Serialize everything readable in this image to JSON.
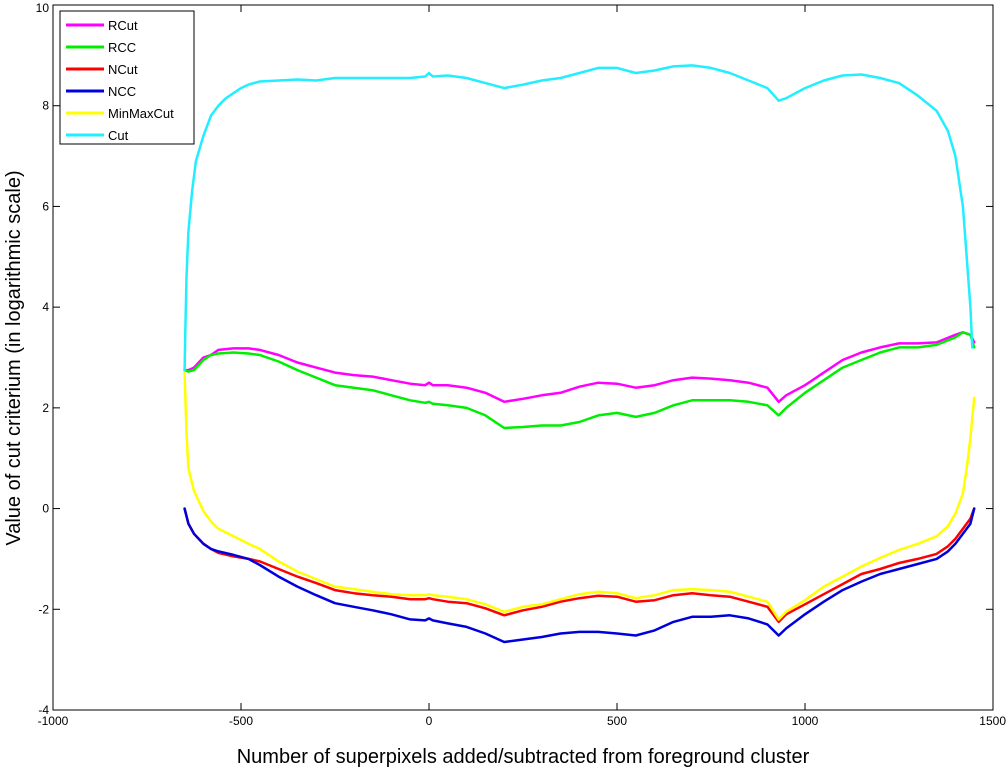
{
  "chart_data": {
    "type": "line",
    "title": "",
    "xlabel": "Number of superpixels added/subtracted from foreground cluster",
    "ylabel": "Value of cut criterium (in logarithmic scale)",
    "xlim": [
      -1000,
      1500
    ],
    "ylim": [
      -4,
      10
    ],
    "xticks": [
      -1000,
      -500,
      0,
      500,
      1000,
      1500
    ],
    "xtick_labels": [
      "-1000",
      "-500",
      "0",
      "500",
      "1000",
      "1500"
    ],
    "yticks": [
      -4,
      -2,
      0,
      2,
      4,
      6,
      8,
      10
    ],
    "ytick_labels": [
      "-4",
      "-2",
      "0",
      "2",
      "4",
      "6",
      "8",
      "10"
    ],
    "grid": false,
    "legend_position": "top-left",
    "series": [
      {
        "name": "RCut",
        "color": "#ff00ff",
        "x": [
          -650,
          -640,
          -625,
          -600,
          -580,
          -560,
          -520,
          -480,
          -450,
          -400,
          -350,
          -300,
          -250,
          -200,
          -150,
          -100,
          -50,
          -10,
          0,
          10,
          50,
          100,
          150,
          200,
          250,
          300,
          350,
          400,
          450,
          500,
          550,
          600,
          650,
          700,
          750,
          800,
          850,
          900,
          930,
          950,
          1000,
          1050,
          1100,
          1150,
          1200,
          1250,
          1300,
          1350,
          1400,
          1420,
          1440,
          1450
        ],
        "y": [
          2.75,
          2.75,
          2.8,
          3.0,
          3.05,
          3.15,
          3.18,
          3.18,
          3.15,
          3.05,
          2.9,
          2.8,
          2.7,
          2.65,
          2.62,
          2.55,
          2.48,
          2.45,
          2.5,
          2.45,
          2.45,
          2.4,
          2.3,
          2.12,
          2.18,
          2.25,
          2.3,
          2.42,
          2.5,
          2.48,
          2.4,
          2.45,
          2.55,
          2.6,
          2.58,
          2.55,
          2.5,
          2.4,
          2.12,
          2.25,
          2.45,
          2.7,
          2.95,
          3.1,
          3.2,
          3.28,
          3.28,
          3.3,
          3.45,
          3.5,
          3.45,
          3.3
        ]
      },
      {
        "name": "RCC",
        "color": "#00ee00",
        "x": [
          -650,
          -640,
          -625,
          -600,
          -580,
          -560,
          -520,
          -480,
          -450,
          -400,
          -350,
          -300,
          -250,
          -200,
          -150,
          -100,
          -50,
          -10,
          0,
          10,
          50,
          100,
          150,
          200,
          250,
          300,
          350,
          400,
          450,
          500,
          550,
          600,
          650,
          700,
          750,
          800,
          850,
          900,
          930,
          950,
          1000,
          1050,
          1100,
          1150,
          1200,
          1250,
          1300,
          1350,
          1400,
          1420,
          1440,
          1450
        ],
        "y": [
          2.75,
          2.72,
          2.75,
          2.95,
          3.05,
          3.08,
          3.1,
          3.08,
          3.05,
          2.92,
          2.75,
          2.6,
          2.45,
          2.4,
          2.35,
          2.25,
          2.15,
          2.1,
          2.12,
          2.08,
          2.05,
          2.0,
          1.85,
          1.6,
          1.62,
          1.65,
          1.65,
          1.72,
          1.85,
          1.9,
          1.82,
          1.9,
          2.05,
          2.15,
          2.15,
          2.15,
          2.12,
          2.05,
          1.85,
          2.0,
          2.3,
          2.55,
          2.8,
          2.95,
          3.1,
          3.2,
          3.2,
          3.25,
          3.4,
          3.5,
          3.45,
          3.2
        ]
      },
      {
        "name": "NCut",
        "color": "#ff0000",
        "x": [
          -650,
          -640,
          -625,
          -600,
          -580,
          -560,
          -520,
          -480,
          -450,
          -400,
          -350,
          -300,
          -250,
          -200,
          -150,
          -100,
          -50,
          -10,
          0,
          10,
          50,
          100,
          150,
          200,
          250,
          300,
          350,
          400,
          450,
          500,
          550,
          600,
          650,
          700,
          750,
          800,
          850,
          900,
          930,
          950,
          1000,
          1050,
          1100,
          1150,
          1200,
          1250,
          1300,
          1350,
          1380,
          1400,
          1420,
          1440,
          1450
        ],
        "y": [
          0.0,
          -0.3,
          -0.5,
          -0.7,
          -0.8,
          -0.88,
          -0.95,
          -1.0,
          -1.05,
          -1.2,
          -1.35,
          -1.48,
          -1.62,
          -1.68,
          -1.72,
          -1.75,
          -1.8,
          -1.8,
          -1.78,
          -1.8,
          -1.85,
          -1.88,
          -1.98,
          -2.12,
          -2.02,
          -1.95,
          -1.85,
          -1.78,
          -1.73,
          -1.75,
          -1.85,
          -1.82,
          -1.72,
          -1.68,
          -1.72,
          -1.75,
          -1.85,
          -1.95,
          -2.25,
          -2.1,
          -1.9,
          -1.7,
          -1.5,
          -1.3,
          -1.2,
          -1.08,
          -1.0,
          -0.9,
          -0.75,
          -0.6,
          -0.4,
          -0.2,
          0.0
        ]
      },
      {
        "name": "NCC",
        "color": "#0000dd",
        "x": [
          -650,
          -640,
          -625,
          -600,
          -580,
          -560,
          -520,
          -480,
          -450,
          -400,
          -350,
          -300,
          -250,
          -200,
          -150,
          -100,
          -50,
          -10,
          0,
          10,
          50,
          100,
          150,
          200,
          250,
          300,
          350,
          400,
          450,
          500,
          550,
          600,
          650,
          700,
          750,
          800,
          850,
          900,
          930,
          950,
          1000,
          1050,
          1100,
          1150,
          1200,
          1250,
          1300,
          1350,
          1380,
          1400,
          1420,
          1440,
          1450
        ],
        "y": [
          0.0,
          -0.3,
          -0.5,
          -0.7,
          -0.8,
          -0.85,
          -0.92,
          -1.0,
          -1.12,
          -1.35,
          -1.55,
          -1.72,
          -1.88,
          -1.95,
          -2.02,
          -2.1,
          -2.2,
          -2.22,
          -2.18,
          -2.22,
          -2.28,
          -2.35,
          -2.48,
          -2.65,
          -2.6,
          -2.55,
          -2.48,
          -2.45,
          -2.45,
          -2.48,
          -2.52,
          -2.42,
          -2.25,
          -2.15,
          -2.15,
          -2.12,
          -2.18,
          -2.3,
          -2.52,
          -2.38,
          -2.1,
          -1.85,
          -1.62,
          -1.45,
          -1.3,
          -1.2,
          -1.1,
          -1.0,
          -0.85,
          -0.7,
          -0.5,
          -0.3,
          0.0
        ]
      },
      {
        "name": "MinMaxCut",
        "color": "#ffff00",
        "x": [
          -650,
          -645,
          -640,
          -625,
          -600,
          -580,
          -560,
          -520,
          -480,
          -450,
          -400,
          -350,
          -300,
          -250,
          -200,
          -150,
          -100,
          -50,
          -10,
          0,
          10,
          50,
          100,
          150,
          200,
          250,
          300,
          350,
          400,
          450,
          500,
          550,
          600,
          650,
          700,
          750,
          800,
          850,
          900,
          930,
          950,
          1000,
          1050,
          1100,
          1150,
          1200,
          1250,
          1300,
          1350,
          1380,
          1400,
          1420,
          1430,
          1440,
          1450
        ],
        "y": [
          2.7,
          1.5,
          0.8,
          0.35,
          -0.05,
          -0.25,
          -0.4,
          -0.55,
          -0.7,
          -0.8,
          -1.05,
          -1.25,
          -1.4,
          -1.55,
          -1.6,
          -1.65,
          -1.7,
          -1.72,
          -1.72,
          -1.7,
          -1.72,
          -1.75,
          -1.8,
          -1.9,
          -2.05,
          -1.95,
          -1.9,
          -1.8,
          -1.7,
          -1.65,
          -1.68,
          -1.78,
          -1.72,
          -1.62,
          -1.6,
          -1.62,
          -1.65,
          -1.75,
          -1.85,
          -2.2,
          -2.05,
          -1.82,
          -1.55,
          -1.35,
          -1.15,
          -0.98,
          -0.82,
          -0.7,
          -0.55,
          -0.35,
          -0.1,
          0.3,
          0.8,
          1.4,
          2.2
        ]
      },
      {
        "name": "Cut",
        "color": "#22eeff",
        "x": [
          -650,
          -648,
          -645,
          -640,
          -630,
          -620,
          -600,
          -580,
          -560,
          -540,
          -520,
          -500,
          -480,
          -450,
          -400,
          -350,
          -300,
          -250,
          -200,
          -150,
          -100,
          -50,
          -10,
          0,
          10,
          50,
          100,
          150,
          200,
          250,
          300,
          350,
          400,
          450,
          500,
          550,
          600,
          650,
          700,
          750,
          800,
          850,
          900,
          930,
          950,
          1000,
          1050,
          1100,
          1150,
          1200,
          1250,
          1300,
          1350,
          1380,
          1400,
          1420,
          1430,
          1440,
          1445
        ],
        "y": [
          2.75,
          3.6,
          4.6,
          5.5,
          6.3,
          6.9,
          7.4,
          7.8,
          8.0,
          8.15,
          8.25,
          8.35,
          8.42,
          8.48,
          8.5,
          8.52,
          8.5,
          8.55,
          8.55,
          8.55,
          8.55,
          8.55,
          8.58,
          8.65,
          8.58,
          8.6,
          8.55,
          8.45,
          8.35,
          8.42,
          8.5,
          8.55,
          8.65,
          8.75,
          8.75,
          8.65,
          8.7,
          8.78,
          8.8,
          8.75,
          8.65,
          8.5,
          8.35,
          8.1,
          8.15,
          8.35,
          8.5,
          8.6,
          8.62,
          8.55,
          8.45,
          8.2,
          7.9,
          7.5,
          7.0,
          6.0,
          5.0,
          4.0,
          3.2
        ]
      }
    ]
  }
}
